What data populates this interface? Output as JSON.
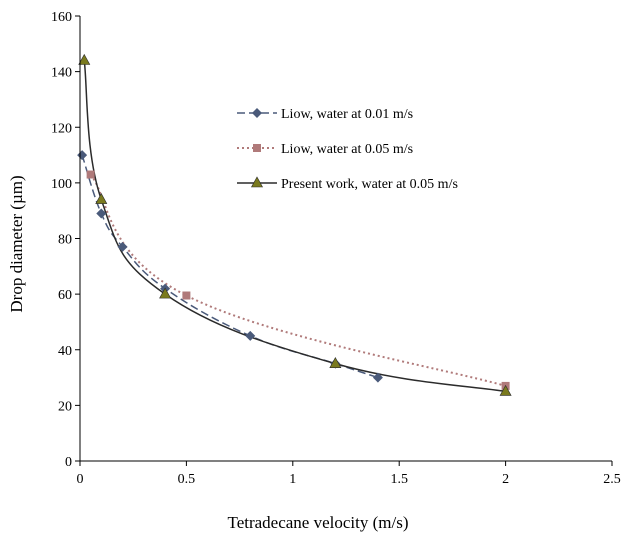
{
  "chart_data": {
    "type": "scatter",
    "xlabel": "Tetradecane velocity (m/s)",
    "ylabel": "Drop diameter (µm)",
    "xlim": [
      0,
      2.5
    ],
    "ylim": [
      0,
      160
    ],
    "x_ticks": [
      0,
      0.5,
      1,
      1.5,
      2,
      2.5
    ],
    "x_tick_labels": [
      "0",
      "0.5",
      "1",
      "1.5",
      "2",
      "2.5"
    ],
    "y_ticks": [
      0,
      20,
      40,
      60,
      80,
      100,
      120,
      140,
      160
    ],
    "y_tick_labels": [
      "0",
      "20",
      "40",
      "60",
      "80",
      "100",
      "120",
      "140",
      "160"
    ],
    "grid": false,
    "legend_position": "upper-center",
    "series": [
      {
        "name": "Liow, water at 0.01 m/s",
        "marker": "diamond",
        "line": "dashed",
        "color": "#4a5a7a",
        "x": [
          0.01,
          0.1,
          0.2,
          0.4,
          0.8,
          1.2,
          1.4
        ],
        "y": [
          110,
          89,
          77,
          62,
          45,
          35,
          30
        ]
      },
      {
        "name": "Liow, water at 0.05 m/s",
        "marker": "square",
        "line": "dotted",
        "color": "#b07a7a",
        "x": [
          0.05,
          0.5,
          2.0
        ],
        "y": [
          103,
          59.5,
          27
        ]
      },
      {
        "name": "Present work, water at 0.05 m/s",
        "marker": "triangle",
        "line": "solid",
        "color": "#2b2b2b",
        "marker_fill": "#7a7a1e",
        "x": [
          0.02,
          0.1,
          0.4,
          1.2,
          2.0
        ],
        "y": [
          144,
          94,
          60,
          35,
          25
        ]
      }
    ]
  }
}
